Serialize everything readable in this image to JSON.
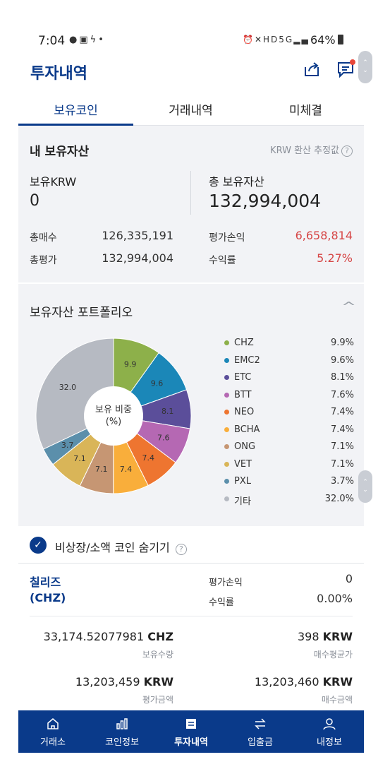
{
  "status_bar": {
    "time": "7:04",
    "left_icons": [
      "talk-icon",
      "gallery-icon",
      "k-icon",
      "dot-icon"
    ],
    "right_icons": [
      "alarm-icon",
      "mute-icon",
      "hd-voice-icon",
      "5g-icon",
      "signal-icon"
    ],
    "battery": "64%"
  },
  "header": {
    "title": "투자내역",
    "share_icon": "share-icon",
    "chat_icon": "chat-icon"
  },
  "tabs": [
    {
      "label": "보유코인",
      "active": true
    },
    {
      "label": "거래내역",
      "active": false
    },
    {
      "label": "미체결",
      "active": false
    }
  ],
  "summary": {
    "title": "내 보유자산",
    "note": "KRW 환산 추정값",
    "krw_label": "보유KRW",
    "krw_value": "0",
    "total_label": "총 보유자산",
    "total_value": "132,994,004",
    "metrics": {
      "buy_total_label": "총매수",
      "buy_total_value": "126,335,191",
      "eval_total_label": "총평가",
      "eval_total_value": "132,994,004",
      "pl_label": "평가손익",
      "pl_value": "6,658,814",
      "rate_label": "수익률",
      "rate_value": "5.27%"
    }
  },
  "portfolio": {
    "title": "보유자산 포트폴리오",
    "center_label_line1": "보유 비중",
    "center_label_line2": "(%)"
  },
  "chart_data": {
    "type": "pie",
    "title": "보유자산 포트폴리오",
    "categories": [
      "CHZ",
      "EMC2",
      "ETC",
      "BTT",
      "NEO",
      "BCHA",
      "ONG",
      "VET",
      "PXL",
      "기타"
    ],
    "values": [
      9.9,
      9.6,
      8.1,
      7.6,
      7.4,
      7.4,
      7.1,
      7.1,
      3.7,
      32.0
    ],
    "labels": [
      "9.9%",
      "9.6%",
      "8.1%",
      "7.6%",
      "7.4%",
      "7.4%",
      "7.1%",
      "7.1%",
      "3.7%",
      "32.0%"
    ],
    "slice_labels": [
      "9.9",
      "9.6",
      "8.1",
      "7.6",
      "7.4",
      "7.4",
      "7.1",
      "7.1",
      "3.7",
      "32.0"
    ],
    "colors": [
      "#8db04a",
      "#1b87b8",
      "#5b4e9a",
      "#b568b3",
      "#ee7530",
      "#f9ae3b",
      "#c69673",
      "#d9b558",
      "#5b8fab",
      "#b6bac2"
    ],
    "legend_position": "right"
  },
  "hide_row": {
    "label": "비상장/소액 코인 숨기기",
    "checked": true
  },
  "holding": {
    "name_ko": "칠리즈",
    "symbol": "(CHZ)",
    "pl_label": "평가손익",
    "pl_value": "0",
    "rate_label": "수익률",
    "rate_value": "0.00%",
    "qty_value": "33,174.52077981",
    "qty_unit": "CHZ",
    "qty_caption": "보유수량",
    "avg_value": "398",
    "avg_unit": "KRW",
    "avg_caption": "매수평균가",
    "eval_value": "13,203,459",
    "eval_unit": "KRW",
    "eval_caption": "평가금액",
    "buy_value": "13,203,460",
    "buy_unit": "KRW",
    "buy_caption": "매수금액"
  },
  "bottom_nav": [
    {
      "label": "거래소",
      "icon": "home-icon",
      "active": false
    },
    {
      "label": "코인정보",
      "icon": "chart-icon",
      "active": false
    },
    {
      "label": "투자내역",
      "icon": "list-icon",
      "active": true
    },
    {
      "label": "입출금",
      "icon": "transfer-icon",
      "active": false
    },
    {
      "label": "내정보",
      "icon": "person-icon",
      "active": false
    }
  ],
  "colors": {
    "brand": "#0a3a8a",
    "positive": "#d64545",
    "panel_bg": "#f2f3f6"
  }
}
